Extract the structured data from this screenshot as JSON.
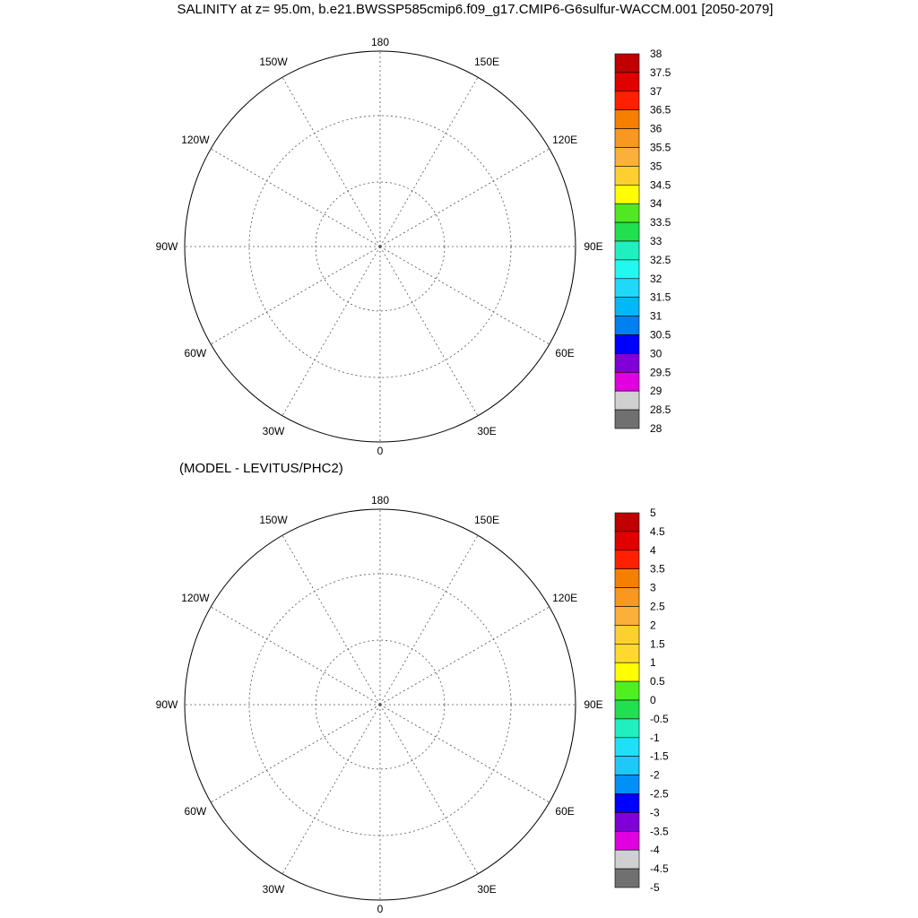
{
  "title": "SALINITY at z=  95.0m, b.e21.BWSSP585cmip6.f09_g17.CMIP6-G6sulfur-WACCM.001 [2050-2079]",
  "subtitle": "(MODEL - LEVITUS/PHC2)",
  "longitude_labels": [
    "180",
    "150E",
    "120E",
    "90E",
    "60E",
    "30E",
    "0",
    "30W",
    "60W",
    "90W",
    "120W",
    "150W"
  ],
  "colors": {
    "land": "#ffffff",
    "grid": "#555555",
    "coast": "#000000"
  },
  "panels": [
    {
      "name": "model-salinity",
      "colorbar": {
        "labels": [
          "38",
          "37.5",
          "37",
          "36.5",
          "36",
          "35.5",
          "35",
          "34.5",
          "34",
          "33.5",
          "33",
          "32.5",
          "32",
          "31.5",
          "31",
          "30.5",
          "30",
          "29.5",
          "29",
          "28.5",
          "28"
        ],
        "colors": [
          "#c00000",
          "#e00000",
          "#ff2000",
          "#f58000",
          "#f89820",
          "#fbb03a",
          "#fdd030",
          "#ffff00",
          "#50e820",
          "#20e050",
          "#20f0c0",
          "#20f8f0",
          "#20d8f8",
          "#00b8f8",
          "#0080f0",
          "#0000ff",
          "#8000d8",
          "#e000e0",
          "#d0d0d0",
          "#707070"
        ]
      },
      "region_colors": {
        "basin": "#00b8f8",
        "canada_basin_core": "#00b8f8",
        "transpolar": "#20d8f8",
        "front1": "#20f8f0",
        "front2": "#20f0c0",
        "front3": "#50e820",
        "barents": "#ffff00",
        "nordic": "#fbb03a",
        "channels": "#20d8f8",
        "baffin": "#20f8f0",
        "labrador": "#50e820"
      }
    },
    {
      "name": "model-minus-levitus",
      "colorbar": {
        "labels": [
          "5",
          "4.5",
          "4",
          "3.5",
          "3",
          "2.5",
          "2",
          "1.5",
          "1",
          "0.5",
          "0",
          "-0.5",
          "-1",
          "-1.5",
          "-2",
          "-2.5",
          "-3",
          "-3.5",
          "-4",
          "-4.5",
          "-5"
        ],
        "colors": [
          "#c00000",
          "#e00000",
          "#ff2000",
          "#f58000",
          "#f89820",
          "#fbb03a",
          "#fdd030",
          "#ffd830",
          "#ffff00",
          "#50f020",
          "#20e050",
          "#20f0c0",
          "#20e0f8",
          "#20c8f8",
          "#0090f8",
          "#0000ff",
          "#8000d8",
          "#e000e0",
          "#d0d0d0",
          "#707070"
        ]
      },
      "region_colors": {
        "basin": "#20e0f8",
        "canada_basin_core": "#20e0f8",
        "transpolar": "#20c8f8",
        "front1": "#20c8f8",
        "front2": "#20f0c0",
        "front3": "#20f0c0",
        "barents": "#20f0c0",
        "nordic": "#20f0c0",
        "channels": "#20c8f8",
        "baffin": "#20c8f8",
        "labrador": "#20f0c0"
      }
    }
  ]
}
